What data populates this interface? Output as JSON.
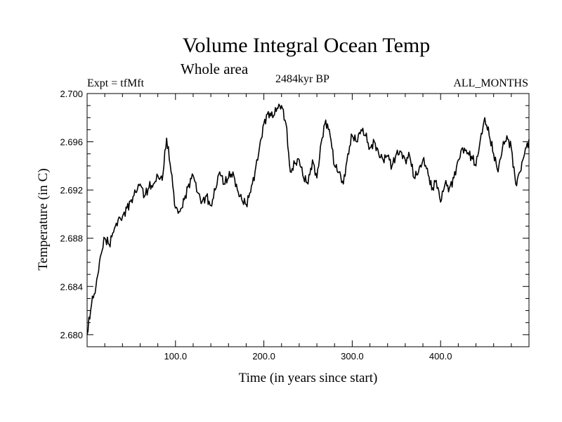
{
  "chart_data": {
    "type": "line",
    "title": "Volume Integral Ocean Temp",
    "subtitle": "Whole area",
    "annotations": {
      "experiment": "Expt = tfMft",
      "period": "2484kyr BP",
      "months": "ALL_MONTHS"
    },
    "xlabel": "Time (in years since start)",
    "ylabel": "Temperature (in C)",
    "xlim": [
      0,
      500
    ],
    "ylim": [
      2.679,
      2.7
    ],
    "x_ticks": [
      100,
      200,
      300,
      400
    ],
    "x_tick_labels": [
      "100.0",
      "200.0",
      "300.0",
      "400.0"
    ],
    "y_ticks": [
      2.68,
      2.684,
      2.688,
      2.692,
      2.696,
      2.7
    ],
    "y_tick_labels": [
      "2.680",
      "2.684",
      "2.688",
      "2.692",
      "2.696",
      "2.700"
    ],
    "grid": false,
    "series": [
      {
        "name": "Volume Integral Ocean Temp",
        "x": [
          0,
          5,
          10,
          15,
          20,
          25,
          30,
          35,
          40,
          45,
          50,
          55,
          60,
          65,
          70,
          75,
          80,
          85,
          90,
          95,
          100,
          105,
          110,
          115,
          120,
          125,
          130,
          135,
          140,
          145,
          150,
          155,
          160,
          165,
          170,
          175,
          180,
          185,
          190,
          195,
          200,
          205,
          210,
          215,
          220,
          225,
          230,
          235,
          240,
          245,
          250,
          255,
          260,
          265,
          270,
          275,
          280,
          285,
          290,
          295,
          300,
          305,
          310,
          315,
          320,
          325,
          330,
          335,
          340,
          345,
          350,
          355,
          360,
          365,
          370,
          375,
          380,
          385,
          390,
          395,
          400,
          405,
          410,
          415,
          420,
          425,
          430,
          435,
          440,
          445,
          450,
          455,
          460,
          465,
          470,
          475,
          480,
          485,
          490,
          495,
          500
        ],
        "values": [
          2.68,
          2.6825,
          2.684,
          2.6865,
          2.688,
          2.6875,
          2.6885,
          2.6895,
          2.6898,
          2.6905,
          2.6912,
          2.6918,
          2.6925,
          2.6915,
          2.6922,
          2.6925,
          2.6932,
          2.6928,
          2.6963,
          2.6935,
          2.6905,
          2.6902,
          2.6912,
          2.6925,
          2.6932,
          2.6918,
          2.691,
          2.6915,
          2.6907,
          2.692,
          2.6935,
          2.6925,
          2.693,
          2.6935,
          2.692,
          2.6912,
          2.6908,
          2.6918,
          2.6935,
          2.6955,
          2.6975,
          2.6985,
          2.698,
          2.6988,
          2.699,
          2.6975,
          2.6935,
          2.6942,
          2.6945,
          2.693,
          2.6925,
          2.6945,
          2.693,
          2.696,
          2.6978,
          2.6965,
          2.694,
          2.6935,
          2.6925,
          2.695,
          2.6965,
          2.696,
          2.697,
          2.6965,
          2.6955,
          2.696,
          2.695,
          2.6945,
          2.6948,
          2.694,
          2.695,
          2.6952,
          2.6945,
          2.6948,
          2.693,
          2.6935,
          2.6945,
          2.6938,
          2.692,
          2.6928,
          2.691,
          2.6925,
          2.6922,
          2.693,
          2.6945,
          2.6955,
          2.695,
          2.6948,
          2.694,
          2.6962,
          2.698,
          2.6965,
          2.695,
          2.6935,
          2.6955,
          2.6965,
          2.6955,
          2.6925,
          2.6935,
          2.695,
          2.6962
        ]
      }
    ]
  }
}
